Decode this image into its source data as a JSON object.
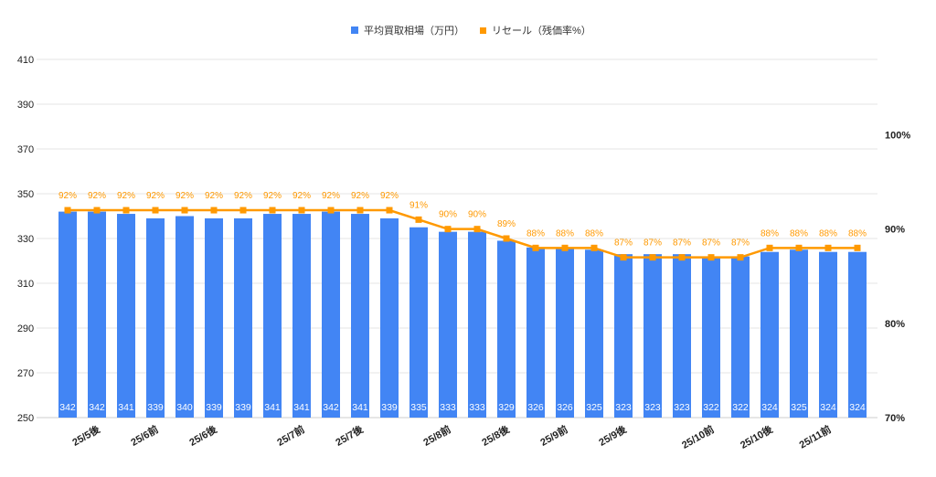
{
  "chart_data": {
    "type": "bar+line",
    "title": "",
    "categories": [
      "",
      "25/5後",
      "",
      "25/6前",
      "",
      "25/6後",
      "",
      "",
      "25/7前",
      "",
      "25/7後",
      "",
      "",
      "25/8前",
      "",
      "25/8後",
      "",
      "25/9前",
      "",
      "25/9後",
      "",
      "",
      "25/10前",
      "",
      "25/10後",
      "",
      "25/11前",
      ""
    ],
    "series": [
      {
        "name": "平均買取相場（万円）",
        "type": "bar",
        "axis": "left",
        "color": "#4285F4",
        "values": [
          342,
          342,
          341,
          339,
          340,
          339,
          339,
          341,
          341,
          342,
          341,
          339,
          335,
          333,
          333,
          329,
          326,
          326,
          325,
          323,
          323,
          323,
          322,
          322,
          324,
          325,
          324,
          324
        ]
      },
      {
        "name": "リセール（残価率%）",
        "type": "line",
        "axis": "right",
        "color": "#FF9900",
        "values": [
          92,
          92,
          92,
          92,
          92,
          92,
          92,
          92,
          92,
          92,
          92,
          92,
          91,
          90,
          90,
          89,
          88,
          88,
          88,
          87,
          87,
          87,
          87,
          87,
          88,
          88,
          88,
          88
        ]
      }
    ],
    "left_axis": {
      "ylim": [
        250,
        410
      ],
      "ticks": [
        250,
        270,
        290,
        310,
        330,
        350,
        370,
        390,
        410
      ]
    },
    "right_axis": {
      "ylim": [
        70,
        108
      ],
      "ticks": [
        70,
        80,
        90,
        100
      ],
      "tick_suffix": "%"
    },
    "data_label_suffix": "%",
    "grid": true,
    "legend": "top"
  }
}
